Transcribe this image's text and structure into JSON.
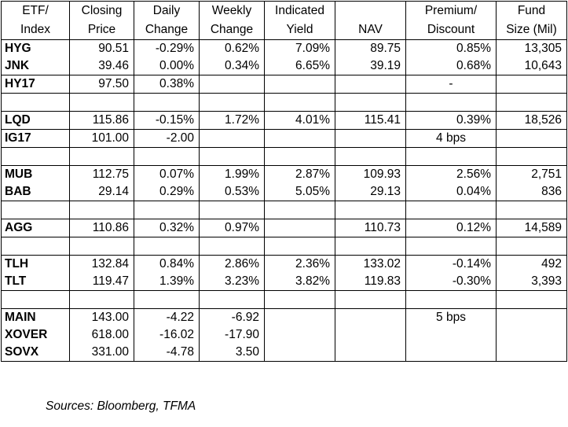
{
  "headers": [
    [
      "ETF/",
      "Index"
    ],
    [
      "Closing",
      "Price"
    ],
    [
      "Daily",
      "Change"
    ],
    [
      "Weekly",
      "Change"
    ],
    [
      "Indicated",
      "Yield"
    ],
    [
      "",
      "NAV"
    ],
    [
      "Premium/",
      "Discount"
    ],
    [
      "Fund",
      "Size (Mil)"
    ]
  ],
  "groups": [
    {
      "rows": [
        {
          "ticker": "HYG",
          "cells": [
            "90.51",
            "-0.29%",
            "0.62%",
            "7.09%",
            "89.75",
            "0.85%",
            "13,305"
          ]
        },
        {
          "ticker": "JNK",
          "cells": [
            "39.46",
            "0.00%",
            "0.34%",
            "6.65%",
            "39.19",
            "0.68%",
            "10,643"
          ]
        }
      ]
    },
    {
      "rows": [
        {
          "ticker": "HY17",
          "cells": [
            "97.50",
            "0.38%",
            "",
            "",
            "",
            "-",
            ""
          ]
        }
      ]
    },
    {
      "spacer": true
    },
    {
      "rows": [
        {
          "ticker": "LQD",
          "cells": [
            "115.86",
            "-0.15%",
            "1.72%",
            "4.01%",
            "115.41",
            "0.39%",
            "18,526"
          ]
        }
      ]
    },
    {
      "rows": [
        {
          "ticker": "IG17",
          "cells": [
            "101.00",
            "-2.00",
            "",
            "",
            "",
            "4 bps",
            ""
          ]
        }
      ]
    },
    {
      "spacer": true
    },
    {
      "rows": [
        {
          "ticker": "MUB",
          "cells": [
            "112.75",
            "0.07%",
            "1.99%",
            "2.87%",
            "109.93",
            "2.56%",
            "2,751"
          ]
        },
        {
          "ticker": "BAB",
          "cells": [
            "29.14",
            "0.29%",
            "0.53%",
            "5.05%",
            "29.13",
            "0.04%",
            "836"
          ]
        }
      ]
    },
    {
      "spacer": true
    },
    {
      "rows": [
        {
          "ticker": "AGG",
          "cells": [
            "110.86",
            "0.32%",
            "0.97%",
            "",
            "110.73",
            "0.12%",
            "14,589"
          ]
        }
      ]
    },
    {
      "spacer": true
    },
    {
      "rows": [
        {
          "ticker": "TLH",
          "cells": [
            "132.84",
            "0.84%",
            "2.86%",
            "2.36%",
            "133.02",
            "-0.14%",
            "492"
          ]
        },
        {
          "ticker": "TLT",
          "cells": [
            "119.47",
            "1.39%",
            "3.23%",
            "3.82%",
            "119.83",
            "-0.30%",
            "3,393"
          ]
        }
      ]
    },
    {
      "spacer": true
    },
    {
      "rows": [
        {
          "ticker": "MAIN",
          "cells": [
            "143.00",
            "-4.22",
            "-6.92",
            "",
            "",
            "5 bps",
            ""
          ]
        },
        {
          "ticker": "XOVER",
          "cells": [
            "618.00",
            "-16.02",
            "-17.90",
            "",
            "",
            "",
            ""
          ]
        },
        {
          "ticker": "SOVX",
          "cells": [
            "331.00",
            "-4.78",
            "3.50",
            "",
            "",
            "",
            ""
          ]
        }
      ]
    }
  ],
  "sources": "Sources: Bloomberg, TFMA"
}
